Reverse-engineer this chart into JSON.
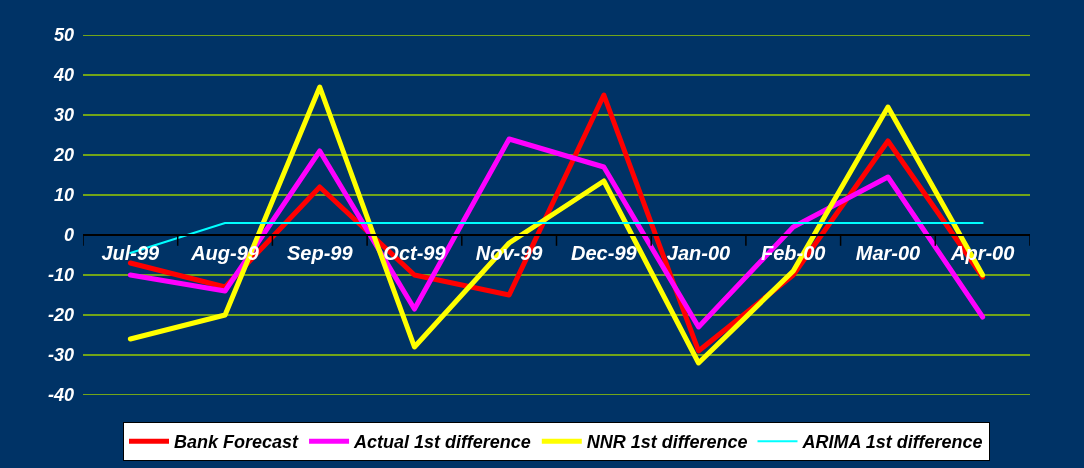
{
  "chart_data": {
    "type": "line",
    "categories": [
      "Jul-99",
      "Aug-99",
      "Sep-99",
      "Oct-99",
      "Nov-99",
      "Dec-99",
      "Jan-00",
      "Feb-00",
      "Mar-00",
      "Apr-00"
    ],
    "series": [
      {
        "name": "Bank Forecast",
        "color": "#ff0000",
        "values": [
          -7,
          -13,
          12,
          -10,
          -15,
          35,
          -29,
          -10,
          23.5,
          -10.5
        ]
      },
      {
        "name": "Actual 1st difference",
        "color": "#ff00ff",
        "values": [
          -10,
          -14,
          21,
          -18.5,
          24,
          17,
          -23,
          2,
          14.5,
          -20.5
        ]
      },
      {
        "name": "NNR 1st difference",
        "color": "#ffff00",
        "values": [
          -26,
          -20,
          37,
          -28,
          -2,
          13.5,
          -32,
          -9,
          32,
          -10
        ]
      },
      {
        "name": "ARIMA 1st difference",
        "color": "#00ffff",
        "values": [
          -4.5,
          3,
          3,
          3,
          3,
          3,
          3,
          3,
          3,
          3
        ]
      }
    ],
    "ylim": [
      -40,
      50
    ],
    "yticks": [
      -40,
      -30,
      -20,
      -10,
      0,
      10,
      20,
      30,
      40,
      50
    ],
    "grid": "y",
    "legend": "bottom"
  }
}
